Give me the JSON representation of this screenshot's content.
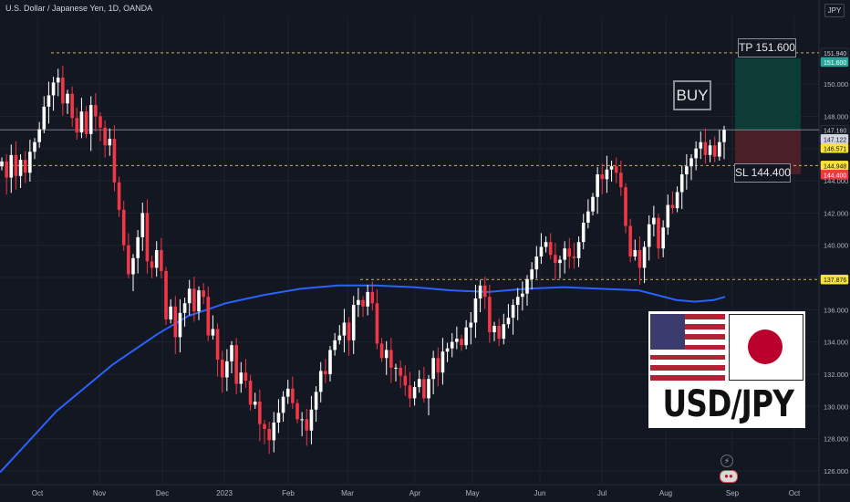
{
  "header": {
    "symbol_title": "U.S. Dollar / Japanese Yen, 1D, OANDA",
    "currency": "JPY"
  },
  "annotations": {
    "signal": "BUY",
    "take_profit": "TP 151.600",
    "stop_loss": "SL 144.400"
  },
  "badge": {
    "pair": "USD/JPY",
    "flags": [
      "us-flag",
      "japan-flag"
    ]
  },
  "icons": [
    "lightning-icon",
    "economic-calendar-icon"
  ],
  "colors": {
    "background": "#131722",
    "bull": "#ffffff",
    "bear": "#f23645",
    "moving_average": "#2962ff",
    "tp_zone": "#0d3b35",
    "sl_zone": "#4a1f27",
    "axis_text": "#b2b5be"
  },
  "chart_data": {
    "type": "candlestick",
    "xlabel": "",
    "ylabel": "",
    "ylim": [
      125.2,
      154.2
    ],
    "y_ticks": [
      "126.000",
      "128.000",
      "130.000",
      "132.000",
      "134.000",
      "136.000",
      "138.000",
      "140.000",
      "142.000",
      "144.000",
      "146.000",
      "148.000",
      "150.000"
    ],
    "x_ticks": [
      "Oct",
      "Nov",
      "Dec",
      "2023",
      "Feb",
      "Mar",
      "Apr",
      "May",
      "Jun",
      "Jul",
      "Aug",
      "Sep",
      "Oct"
    ],
    "price_labels": [
      {
        "value": 151.94,
        "text": "151.940",
        "style": "plain"
      },
      {
        "value": 151.6,
        "text": "151.600",
        "style": "tp"
      },
      {
        "value": 147.16,
        "text": "147.160",
        "style": "plain"
      },
      {
        "value": 147.122,
        "text": "147.122",
        "style": "last"
      },
      {
        "value": 146.571,
        "text": "146.571",
        "style": "yellow"
      },
      {
        "value": 144.948,
        "text": "144.948",
        "style": "yellow"
      },
      {
        "value": 144.4,
        "text": "144.400",
        "style": "sl"
      },
      {
        "value": 137.876,
        "text": "137.876",
        "style": "yellow"
      }
    ],
    "horizontal_levels": [
      {
        "value": 151.94,
        "style": "dashed"
      },
      {
        "value": 147.16,
        "style": "solid"
      },
      {
        "value": 144.948,
        "style": "dashed"
      },
      {
        "value": 137.876,
        "style": "dashed"
      }
    ],
    "position": {
      "entry": 147.122,
      "take_profit": 151.6,
      "stop_loss": 144.4
    },
    "closes": [
      145.2,
      144.2,
      145.6,
      144.3,
      145.3,
      144.5,
      145.8,
      146.4,
      147.2,
      148.6,
      149.3,
      150.1,
      150.4,
      148.8,
      149.4,
      147.9,
      147.0,
      148.3,
      146.9,
      148.7,
      148.0,
      147.3,
      146.2,
      146.6,
      143.9,
      142.2,
      140.0,
      138.2,
      139.2,
      140.5,
      142.0,
      139.0,
      138.6,
      139.7,
      138.4,
      135.4,
      136.2,
      134.3,
      135.8,
      136.4,
      137.3,
      135.9,
      137.2,
      136.8,
      134.4,
      134.8,
      132.9,
      131.8,
      132.8,
      133.8,
      131.4,
      132.1,
      131.6,
      130.1,
      130.3,
      128.9,
      128.6,
      127.9,
      129.0,
      129.6,
      130.6,
      131.1,
      130.2,
      129.2,
      129.2,
      128.5,
      129.8,
      130.9,
      132.2,
      132.0,
      133.5,
      134.1,
      134.4,
      135.2,
      134.1,
      136.3,
      136.6,
      136.2,
      137.1,
      136.4,
      133.9,
      133.0,
      133.5,
      132.4,
      132.4,
      131.9,
      131.3,
      130.5,
      131.2,
      131.7,
      130.5,
      131.7,
      133.0,
      132.1,
      133.4,
      133.6,
      134.0,
      134.2,
      133.8,
      134.9,
      135.2,
      136.7,
      137.5,
      136.8,
      134.6,
      135.0,
      134.2,
      135.1,
      135.5,
      136.3,
      136.8,
      137.0,
      137.9,
      138.5,
      139.3,
      139.9,
      140.2,
      139.4,
      138.9,
      139.1,
      139.8,
      139.3,
      139.2,
      140.2,
      141.4,
      142.1,
      143.0,
      144.4,
      144.1,
      144.7,
      144.9,
      144.5,
      143.6,
      141.2,
      139.3,
      139.7,
      138.6,
      139.9,
      141.3,
      141.7,
      139.8,
      141.1,
      142.5,
      142.3,
      143.3,
      144.4,
      144.9,
      145.4,
      146.0,
      146.4,
      145.6,
      146.2,
      145.5,
      146.4,
      147.16
    ],
    "moving_average": {
      "start": 125.9,
      "points": [
        [
          0,
          125.9
        ],
        [
          0.15,
          129.7
        ],
        [
          0.3,
          132.6
        ],
        [
          0.42,
          134.5
        ],
        [
          0.5,
          135.6
        ],
        [
          0.6,
          136.4
        ],
        [
          0.7,
          136.9
        ],
        [
          0.8,
          137.3
        ],
        [
          0.9,
          137.5
        ],
        [
          1.0,
          137.5
        ],
        [
          1.1,
          137.4
        ],
        [
          1.2,
          137.2
        ],
        [
          1.3,
          137.1
        ],
        [
          1.4,
          137.3
        ],
        [
          1.5,
          137.4
        ],
        [
          1.6,
          137.3
        ],
        [
          1.7,
          137.2
        ],
        [
          1.75,
          136.9
        ],
        [
          1.8,
          136.6
        ],
        [
          1.85,
          136.5
        ],
        [
          1.9,
          136.6
        ],
        [
          1.93,
          136.8
        ]
      ]
    }
  }
}
